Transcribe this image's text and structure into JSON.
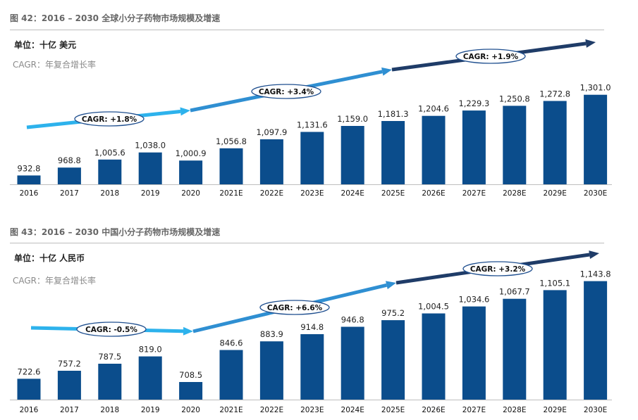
{
  "colors": {
    "bar": "#0b4d8c",
    "arrow_light": "#2db2ec",
    "arrow_mid": "#2f8fd2",
    "arrow_dark": "#1f3c68",
    "oval_border": "#1f4f8f"
  },
  "chart_data": [
    {
      "type": "bar",
      "title": "图 42：2016 – 2030 全球小分子药物市场规模及增速",
      "unit_label": "单位：十亿 美元",
      "cagr_note": "CAGR：年复合增长率",
      "categories": [
        "2016",
        "2017",
        "2018",
        "2019",
        "2020",
        "2021E",
        "2022E",
        "2023E",
        "2024E",
        "2025E",
        "2026E",
        "2027E",
        "2028E",
        "2029E",
        "2030E"
      ],
      "values": [
        932.8,
        968.8,
        1005.6,
        1038.0,
        1000.9,
        1056.8,
        1097.9,
        1131.6,
        1159.0,
        1181.3,
        1204.6,
        1229.3,
        1250.8,
        1272.8,
        1301.0
      ],
      "value_labels": [
        "932.8",
        "968.8",
        "1,005.6",
        "1,038.0",
        "1,000.9",
        "1,056.8",
        "1,097.9",
        "1,131.6",
        "1,159.0",
        "1,181.3",
        "1,204.6",
        "1,229.3",
        "1,250.8",
        "1,272.8",
        "1,301.0"
      ],
      "annotations": [
        {
          "label": "CAGR: +1.8%",
          "from": "2016",
          "to": "2020"
        },
        {
          "label": "CAGR: +3.4%",
          "from": "2020",
          "to": "2025E"
        },
        {
          "label": "CAGR: +1.9%",
          "from": "2025E",
          "to": "2030E"
        }
      ]
    },
    {
      "type": "bar",
      "title": "图 43：2016 – 2030 中国小分子药物市场规模及增速",
      "unit_label": "单位：十亿 人民币",
      "cagr_note": "CAGR：年复合增长率",
      "categories": [
        "2016",
        "2017",
        "2018",
        "2019",
        "2020",
        "2021E",
        "2022E",
        "2023E",
        "2024E",
        "2025E",
        "2026E",
        "2027E",
        "2028E",
        "2029E",
        "2030E"
      ],
      "values": [
        722.6,
        757.2,
        787.5,
        819.0,
        708.5,
        846.6,
        883.9,
        914.8,
        946.8,
        975.2,
        1004.5,
        1034.6,
        1067.7,
        1105.1,
        1143.8
      ],
      "value_labels": [
        "722.6",
        "757.2",
        "787.5",
        "819.0",
        "708.5",
        "846.6",
        "883.9",
        "914.8",
        "946.8",
        "975.2",
        "1,004.5",
        "1,034.6",
        "1,067.7",
        "1,105.1",
        "1,143.8"
      ],
      "annotations": [
        {
          "label": "CAGR: -0.5%",
          "from": "2016",
          "to": "2020"
        },
        {
          "label": "CAGR: +6.6%",
          "from": "2020",
          "to": "2025E"
        },
        {
          "label": "CAGR: +3.2%",
          "from": "2025E",
          "to": "2030E"
        }
      ]
    }
  ]
}
